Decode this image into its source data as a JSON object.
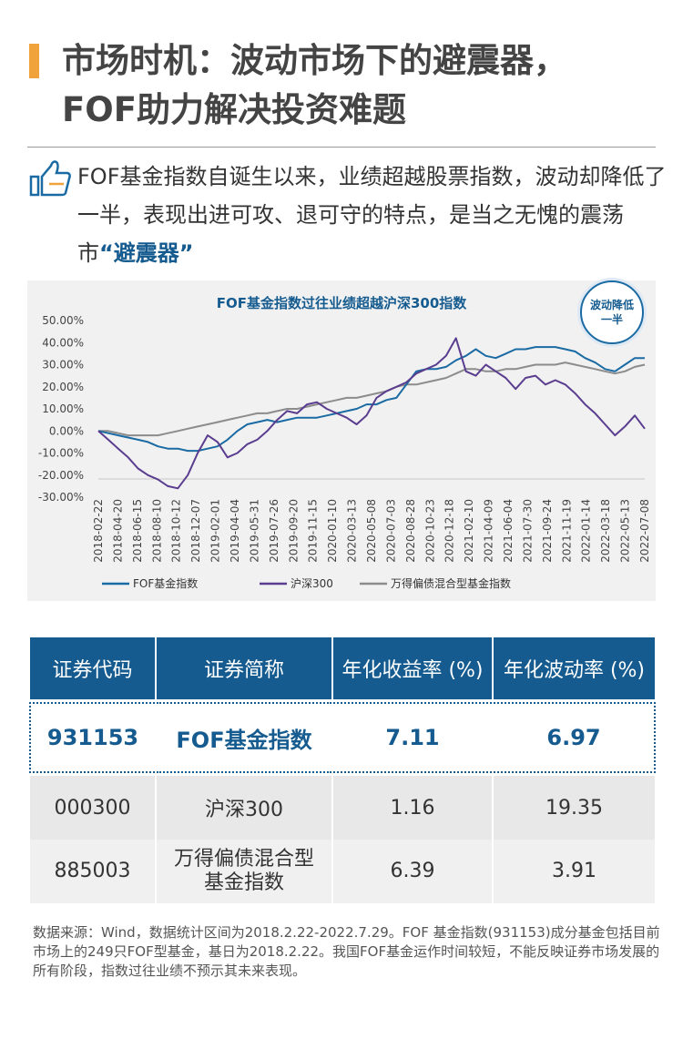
{
  "title": {
    "line1": "市场时机：波动市场下的避震器，",
    "line2": "FOF助力解决投资难题"
  },
  "intro": {
    "text": "FOF基金指数自诞生以来，业绩超越股票指数，波动却降低了一半，表现出进可攻、退可守的特点，是当之无愧的震荡市",
    "highlight": "“避震器”"
  },
  "badge": {
    "text": "波动降低一半"
  },
  "chart_data": {
    "type": "line",
    "title": "FOF基金指数过往业绩超越沪深300指数",
    "yticks": [
      "50.00%",
      "40.00%",
      "30.00%",
      "20.00%",
      "10.00%",
      "0.00%",
      "-10.00%",
      "-20.00%",
      "-30.00%"
    ],
    "ylim": [
      -30,
      50
    ],
    "xticks": [
      "2018-02-22",
      "2018-04-20",
      "2018-06-15",
      "2018-08-10",
      "2018-10-12",
      "2018-12-07",
      "2019-02-01",
      "2019-04-04",
      "2019-05-31",
      "2019-07-26",
      "2019-09-20",
      "2019-11-15",
      "2020-01-10",
      "2020-03-13",
      "2020-05-08",
      "2020-07-03",
      "2020-08-28",
      "2020-10-23",
      "2020-12-18",
      "2021-02-10",
      "2021-04-09",
      "2021-06-04",
      "2021-07-30",
      "2021-09-24",
      "2021-11-19",
      "2022-01-14",
      "2022-03-18",
      "2022-05-13",
      "2022-07-08"
    ],
    "grid": false,
    "legend_position": "bottom",
    "series": [
      {
        "name": "FOF基金指数",
        "color": "#1a6aa3",
        "values": [
          0,
          -1,
          -2,
          -3,
          -4,
          -5,
          -7,
          -8,
          -8,
          -9,
          -9,
          -8,
          -7,
          -4,
          0,
          3,
          4,
          5,
          4,
          5,
          6,
          6,
          6,
          7,
          8,
          9,
          10,
          12,
          12,
          14,
          15,
          21,
          27,
          28,
          28,
          29,
          32,
          34,
          37,
          34,
          33,
          35,
          37,
          37,
          38,
          38,
          38,
          37,
          36,
          33,
          31,
          28,
          27,
          30,
          33,
          33
        ]
      },
      {
        "name": "沪深300",
        "color": "#5a3d8f",
        "values": [
          0,
          -4,
          -8,
          -12,
          -17,
          -20,
          -22,
          -25,
          -26,
          -20,
          -10,
          -2,
          -5,
          -12,
          -10,
          -6,
          -4,
          0,
          5,
          9,
          8,
          12,
          13,
          10,
          8,
          6,
          3,
          7,
          15,
          18,
          20,
          22,
          26,
          28,
          30,
          34,
          42,
          27,
          25,
          30,
          27,
          24,
          19,
          24,
          25,
          21,
          23,
          21,
          17,
          12,
          8,
          3,
          -2,
          2,
          7,
          1
        ]
      },
      {
        "name": "万得偏债混合型基金指数",
        "color": "#8c8c8c",
        "values": [
          0,
          0,
          -1,
          -2,
          -2,
          -2,
          -2,
          -1,
          0,
          1,
          2,
          3,
          4,
          5,
          6,
          7,
          8,
          8,
          9,
          10,
          10,
          11,
          12,
          13,
          14,
          15,
          15,
          16,
          17,
          18,
          20,
          21,
          21,
          22,
          23,
          24,
          26,
          28,
          28,
          27,
          27,
          28,
          28,
          29,
          30,
          30,
          30,
          31,
          30,
          29,
          28,
          27,
          26,
          27,
          29,
          30
        ]
      }
    ]
  },
  "table": {
    "headers": [
      "证券代码",
      "证券简称",
      "年化收益率 (%)",
      "年化波动率 (%)"
    ],
    "rows": [
      {
        "code": "931153",
        "name": "FOF基金指数",
        "ret": "7.11",
        "vol": "6.97"
      },
      {
        "code": "000300",
        "name": "沪深300",
        "ret": "1.16",
        "vol": "19.35"
      },
      {
        "code": "885003",
        "name_line1": "万得偏债混合型",
        "name_line2": "基金指数",
        "ret": "6.39",
        "vol": "3.91"
      }
    ]
  },
  "note": "数据来源：Wind，数据统计区间为2018.2.22-2022.7.29。FOF 基金指数(931153)成分基金包括目前市场上的249只FOF型基金，基日为2018.2.22。我国FOF基金运作时间较短，不能反映证券市场发展的所有阶段，指数过往业绩不预示其未来表现。"
}
